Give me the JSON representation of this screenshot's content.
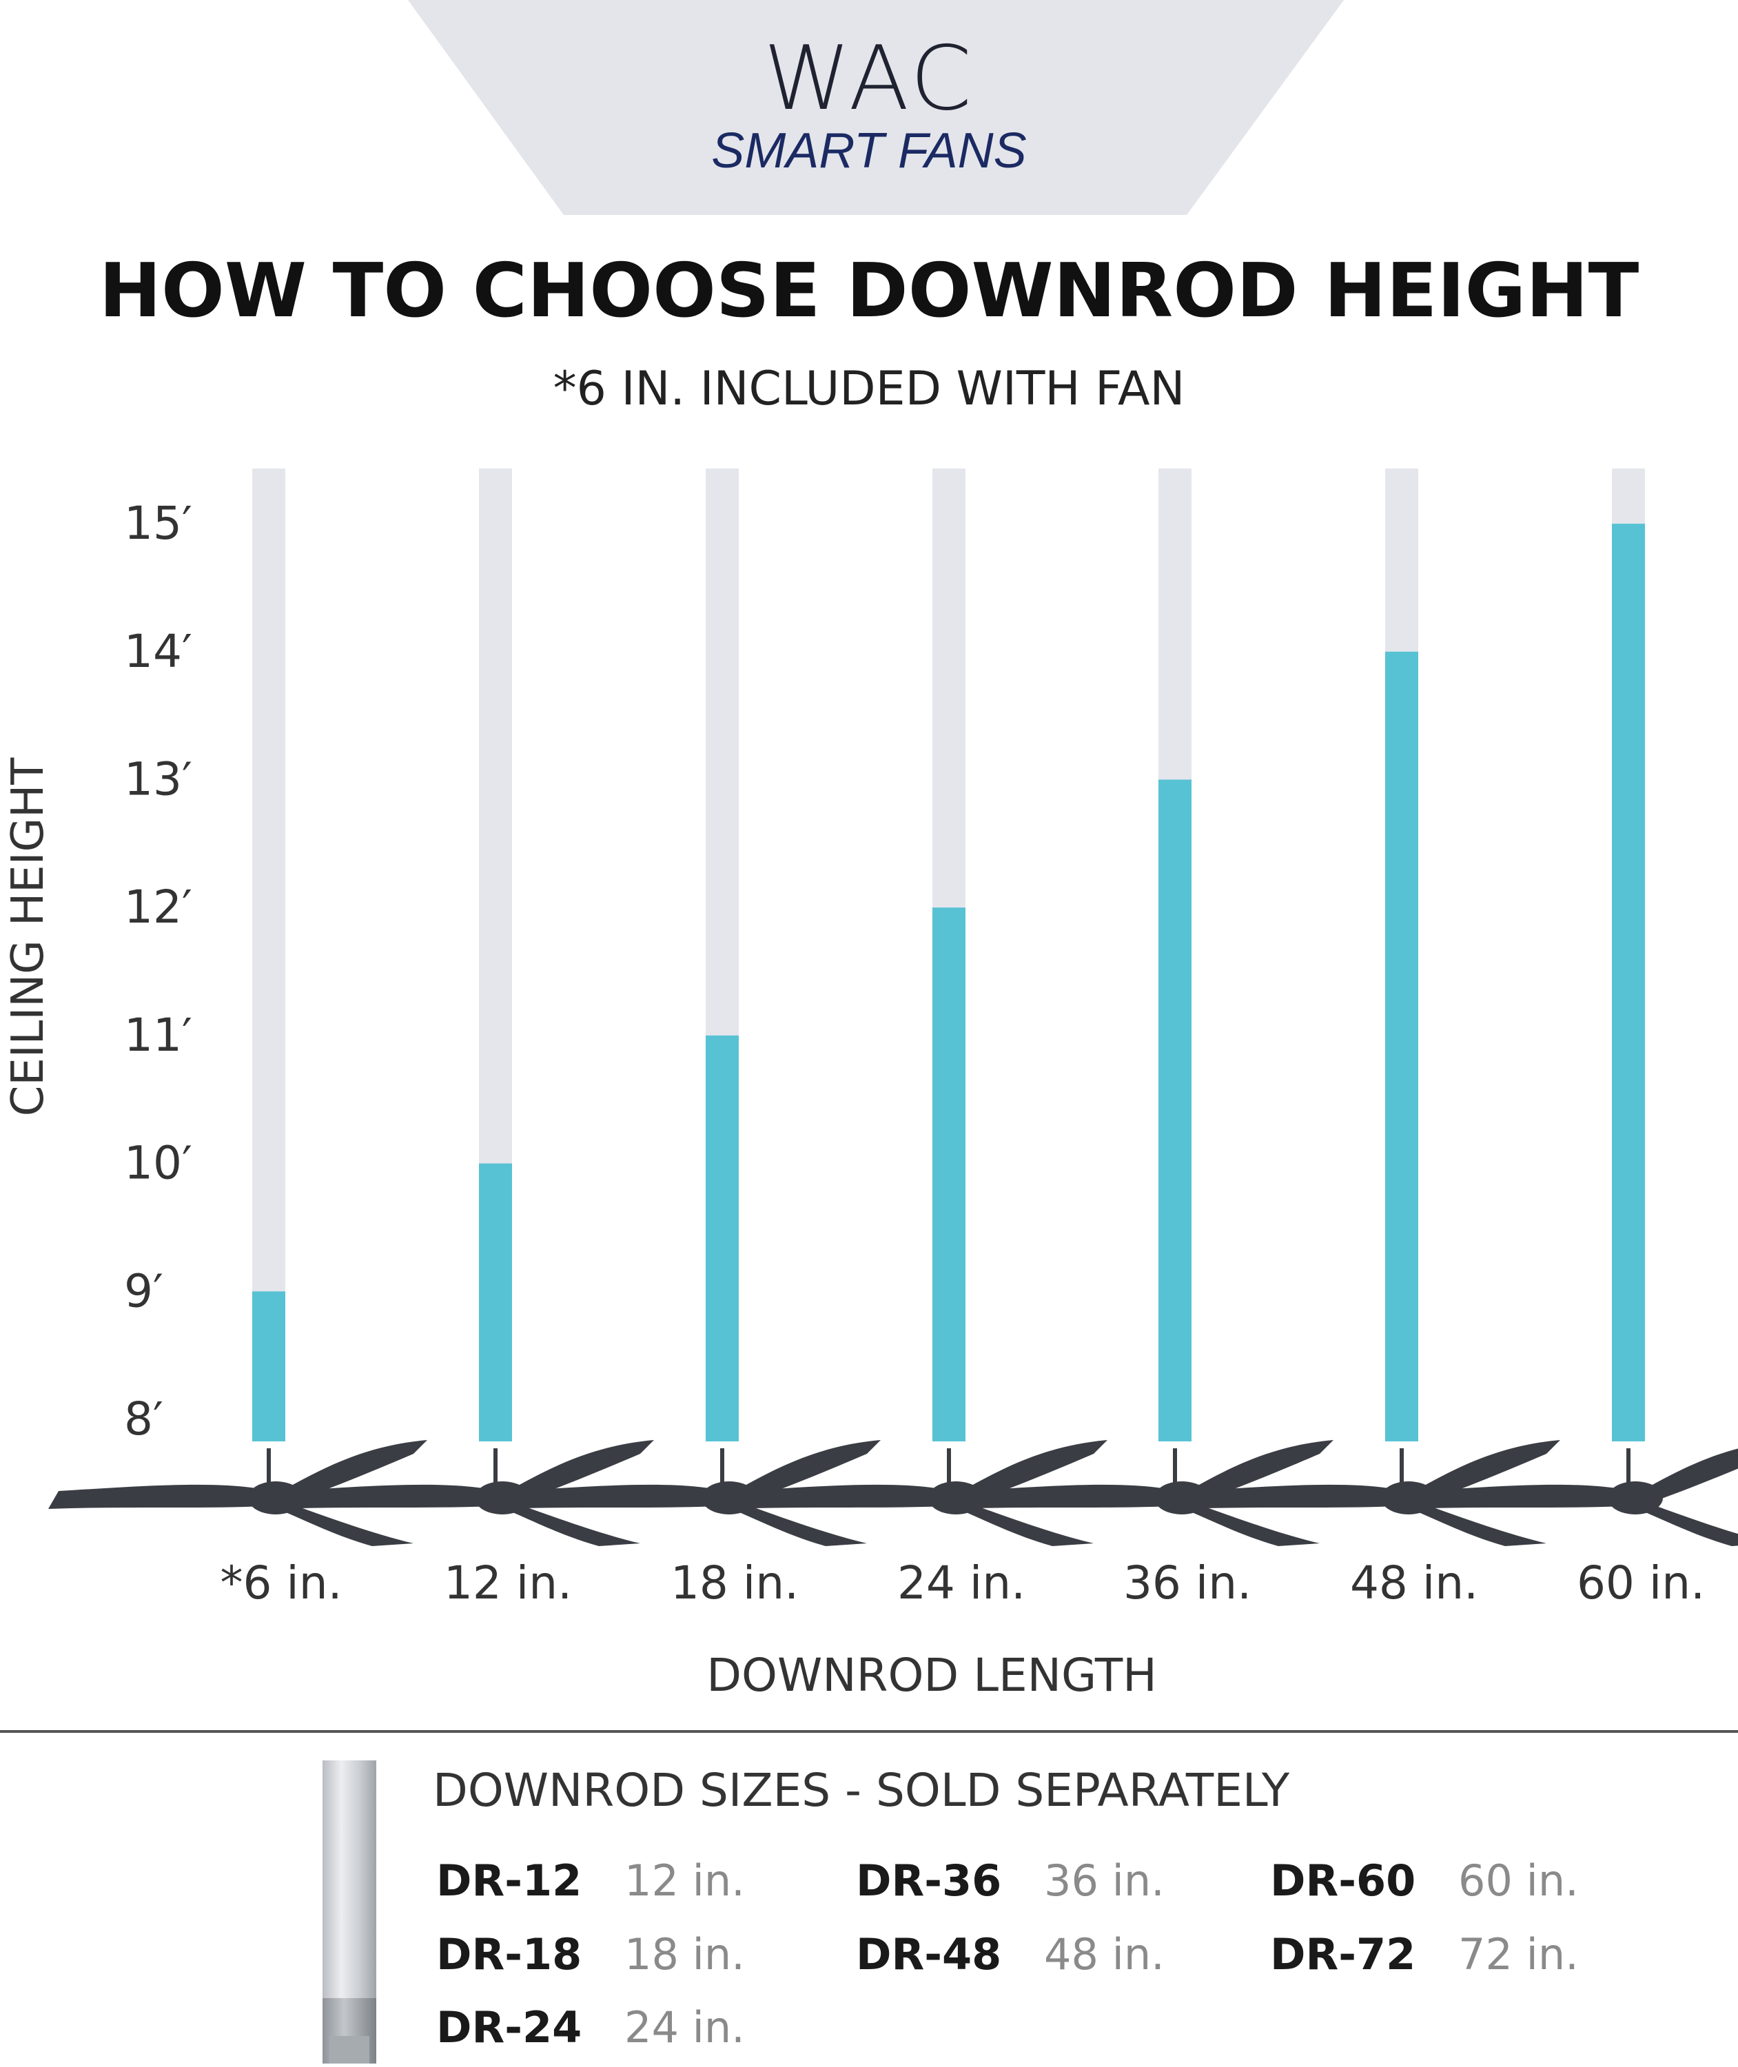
{
  "logo": {
    "name": "WAC",
    "tagline": "SMART FANS"
  },
  "heading": {
    "title": "HOW TO CHOOSE DOWNROD HEIGHT",
    "note": "*6 IN. INCLUDED WITH FAN"
  },
  "chart_data": {
    "type": "bar",
    "ylabel": "CEILING HEIGHT",
    "xlabel": "DOWNROD LENGTH",
    "y_ticks": [
      "8′",
      "9′",
      "10′",
      "11′",
      "12′",
      "13′",
      "14′",
      "15′"
    ],
    "ylim": [
      8,
      15.3
    ],
    "categories": [
      "*6 in.",
      "12 in.",
      "18 in.",
      "24 in.",
      "36 in.",
      "48 in.",
      "60 in."
    ],
    "values": [
      9,
      10,
      11,
      12,
      13,
      14,
      15
    ],
    "colors": {
      "fill": "#57c2d3",
      "track": "#e4e6ec",
      "fan": "#3a3d43"
    }
  },
  "sold_separately": {
    "title": "DOWNROD SIZES - SOLD SEPARATELY",
    "items": [
      {
        "sku": "DR-12",
        "size": "12 in."
      },
      {
        "sku": "DR-18",
        "size": "18 in."
      },
      {
        "sku": "DR-24",
        "size": "24 in."
      },
      {
        "sku": "DR-36",
        "size": "36 in."
      },
      {
        "sku": "DR-48",
        "size": "48 in."
      },
      {
        "sku": "DR-60",
        "size": "60 in."
      },
      {
        "sku": "DR-72",
        "size": "72 in."
      }
    ]
  }
}
